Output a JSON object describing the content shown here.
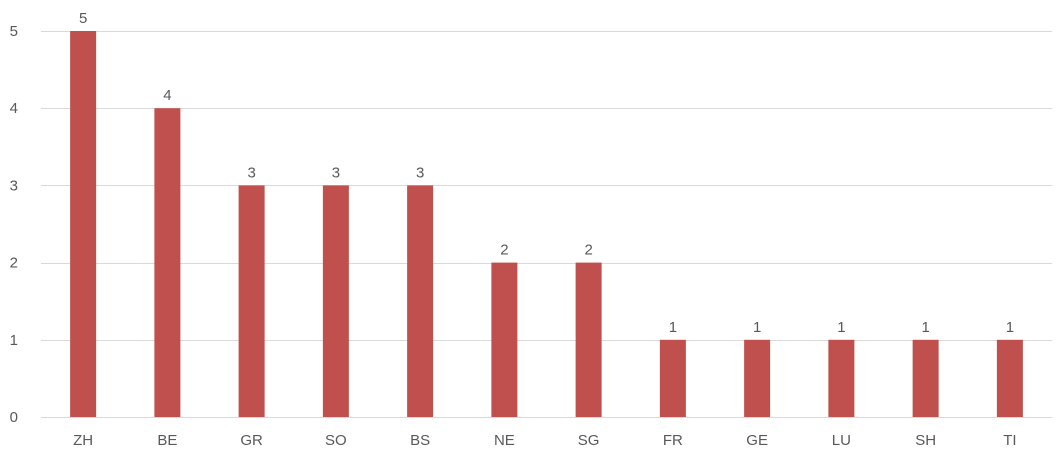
{
  "chart_data": {
    "type": "bar",
    "title": "",
    "xlabel": "",
    "ylabel": "",
    "categories": [
      "ZH",
      "BE",
      "GR",
      "SO",
      "BS",
      "NE",
      "SG",
      "FR",
      "GE",
      "LU",
      "SH",
      "TI"
    ],
    "values": [
      5,
      4,
      3,
      3,
      3,
      2,
      2,
      1,
      1,
      1,
      1,
      1
    ],
    "ylim": [
      0,
      5
    ],
    "yticks": [
      "0",
      "1",
      "2",
      "3",
      "4",
      "5"
    ],
    "data_labels": [
      "5",
      "4",
      "3",
      "3",
      "3",
      "2",
      "2",
      "1",
      "1",
      "1",
      "1",
      "1"
    ],
    "grid": true,
    "legend": "none",
    "colors": {
      "bar": "#C0504D",
      "grid": "#D9D9D9",
      "text": "#595959"
    }
  }
}
